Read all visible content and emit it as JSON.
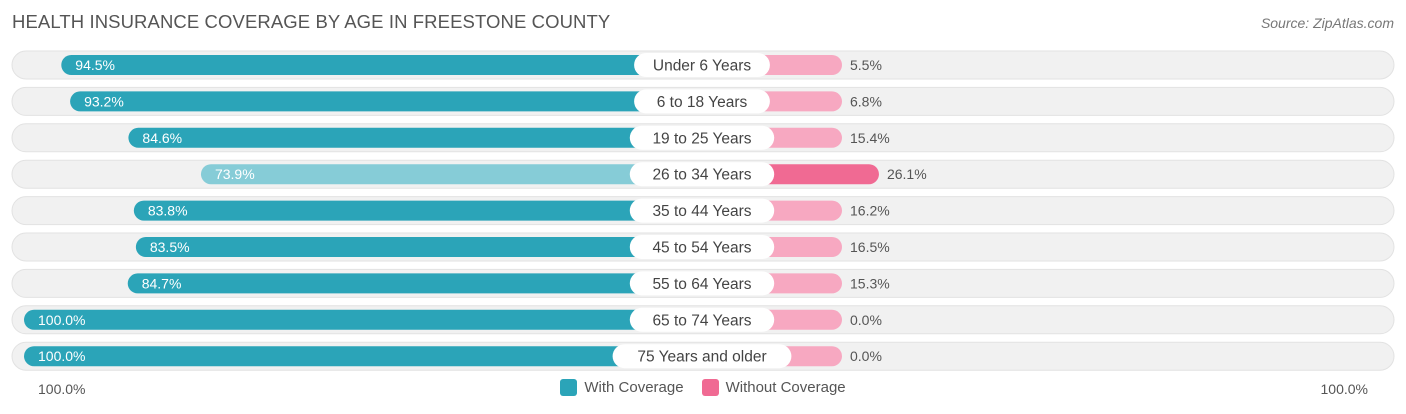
{
  "header": {
    "title": "HEALTH INSURANCE COVERAGE BY AGE IN FREESTONE COUNTY",
    "source": "Source: ZipAtlas.com"
  },
  "axis": {
    "left_label": "100.0%",
    "right_label": "100.0%"
  },
  "legend": {
    "with_label": "With Coverage",
    "without_label": "Without Coverage"
  },
  "colors": {
    "with_dark": "#2ba4b8",
    "with_light": "#86ccd7",
    "without_dark": "#f06a93",
    "without_light": "#f7a8c1",
    "track": "#efefef"
  },
  "chart_data": {
    "type": "bar",
    "title": "HEALTH INSURANCE COVERAGE BY AGE IN FREESTONE COUNTY",
    "categories": [
      "Under 6 Years",
      "6 to 18 Years",
      "19 to 25 Years",
      "26 to 34 Years",
      "35 to 44 Years",
      "45 to 54 Years",
      "55 to 64 Years",
      "65 to 74 Years",
      "75 Years and older"
    ],
    "series": [
      {
        "name": "With Coverage",
        "values": [
          94.5,
          93.2,
          84.6,
          73.9,
          83.8,
          83.5,
          84.7,
          100.0,
          100.0
        ],
        "labels": [
          "94.5%",
          "93.2%",
          "84.6%",
          "73.9%",
          "83.8%",
          "83.5%",
          "84.7%",
          "100.0%",
          "100.0%"
        ]
      },
      {
        "name": "Without Coverage",
        "values": [
          5.5,
          6.8,
          15.4,
          26.1,
          16.2,
          16.5,
          15.3,
          0.0,
          0.0
        ],
        "labels": [
          "5.5%",
          "6.8%",
          "15.4%",
          "26.1%",
          "16.2%",
          "16.5%",
          "15.3%",
          "0.0%",
          "0.0%"
        ]
      }
    ],
    "xlim": [
      0,
      100
    ],
    "legend_position": "bottom-center"
  }
}
